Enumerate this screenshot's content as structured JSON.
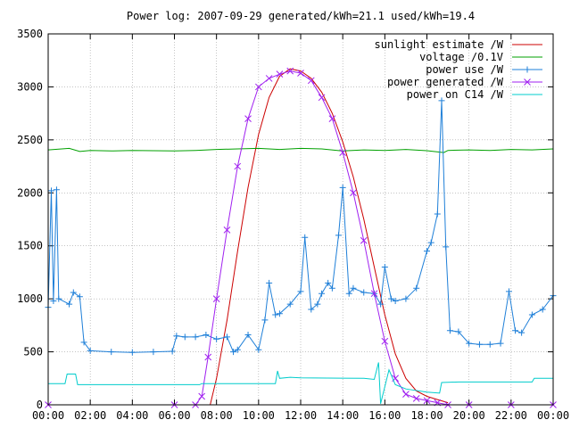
{
  "chart_data": {
    "type": "line",
    "title": "Power log: 2007-09-29 generated/kWh=21.1 used/kWh=19.4",
    "xlabel": "",
    "ylabel": "",
    "xlim": [
      0,
      24
    ],
    "ylim": [
      0,
      3500
    ],
    "grid": true,
    "legend_position": "top-right",
    "x_tick_labels": [
      "00:00",
      "02:00",
      "04:00",
      "06:00",
      "08:00",
      "10:00",
      "12:00",
      "14:00",
      "16:00",
      "18:00",
      "20:00",
      "22:00",
      "00:00"
    ],
    "y_tick_labels": [
      "0",
      "500",
      "1000",
      "1500",
      "2000",
      "2500",
      "3000",
      "3500"
    ],
    "series": [
      {
        "name": "sunlight estimate /W",
        "color": "#cc0000",
        "marker": "none",
        "x": [
          7.7,
          8.0,
          8.5,
          9.0,
          9.5,
          10.0,
          10.5,
          11.0,
          11.5,
          12.0,
          12.5,
          13.0,
          13.5,
          14.0,
          14.5,
          15.0,
          15.5,
          16.0,
          16.5,
          17.0,
          17.5,
          18.0,
          18.5,
          19.0
        ],
        "y": [
          0,
          250,
          800,
          1450,
          2050,
          2550,
          2900,
          3100,
          3170,
          3150,
          3080,
          2950,
          2750,
          2480,
          2150,
          1750,
          1300,
          850,
          480,
          250,
          130,
          80,
          50,
          20
        ]
      },
      {
        "name": "voltage /0.1V",
        "color": "#00a000",
        "marker": "none",
        "x": [
          0,
          1,
          1.5,
          2,
          3,
          4,
          5,
          6,
          7,
          8,
          9,
          10,
          11,
          12,
          13,
          14,
          15,
          16,
          17,
          18,
          18.8,
          19,
          20,
          21,
          22,
          23,
          24
        ],
        "y": [
          2405,
          2420,
          2390,
          2400,
          2395,
          2400,
          2398,
          2395,
          2400,
          2410,
          2415,
          2420,
          2410,
          2420,
          2415,
          2395,
          2405,
          2400,
          2410,
          2398,
          2380,
          2400,
          2405,
          2400,
          2410,
          2405,
          2415
        ]
      },
      {
        "name": "power use /W",
        "color": "#1e7fd8",
        "marker": "plus",
        "x": [
          0,
          0.15,
          0.25,
          0.4,
          0.5,
          1.0,
          1.2,
          1.5,
          1.7,
          2.0,
          3.0,
          4.0,
          5.0,
          5.9,
          6.1,
          6.5,
          7.0,
          7.5,
          8.0,
          8.5,
          8.8,
          9.0,
          9.5,
          10.0,
          10.3,
          10.5,
          10.8,
          11.0,
          11.5,
          12.0,
          12.2,
          12.5,
          12.8,
          13.0,
          13.3,
          13.5,
          13.8,
          14.0,
          14.3,
          14.5,
          15.0,
          15.5,
          15.8,
          16.0,
          16.3,
          16.5,
          17.0,
          17.5,
          18.0,
          18.2,
          18.5,
          18.7,
          18.9,
          19.1,
          19.5,
          20.0,
          20.5,
          21.0,
          21.5,
          21.9,
          22.2,
          22.5,
          23.0,
          23.5,
          24.0
        ],
        "y": [
          920,
          2020,
          980,
          2030,
          1000,
          950,
          1060,
          1020,
          590,
          510,
          500,
          495,
          500,
          505,
          650,
          640,
          640,
          660,
          620,
          640,
          500,
          520,
          660,
          520,
          800,
          1150,
          850,
          860,
          950,
          1070,
          1580,
          900,
          950,
          1050,
          1150,
          1100,
          1600,
          2050,
          1050,
          1100,
          1060,
          1050,
          950,
          1300,
          1000,
          980,
          1000,
          1100,
          1450,
          1530,
          1800,
          2870,
          1490,
          700,
          690,
          580,
          570,
          570,
          580,
          1070,
          700,
          680,
          850,
          900,
          1030
        ]
      },
      {
        "name": "power generated /W",
        "color": "#a020f0",
        "marker": "cross",
        "x": [
          0,
          6,
          7,
          7.3,
          7.6,
          8.0,
          8.5,
          9.0,
          9.5,
          10.0,
          10.5,
          11.0,
          11.5,
          12.0,
          12.5,
          13.0,
          13.5,
          14.0,
          14.5,
          15.0,
          15.5,
          16.0,
          16.5,
          17.0,
          17.5,
          18.0,
          18.5,
          19.0,
          20.0,
          22.0,
          24.0
        ],
        "y": [
          0,
          0,
          0,
          80,
          450,
          1000,
          1650,
          2250,
          2700,
          3000,
          3080,
          3120,
          3150,
          3130,
          3060,
          2900,
          2700,
          2380,
          2000,
          1550,
          1050,
          600,
          250,
          100,
          60,
          40,
          20,
          0,
          0,
          0,
          0
        ]
      },
      {
        "name": "power on C14 /W",
        "color": "#00cccc",
        "marker": "none",
        "x": [
          0,
          0.8,
          0.9,
          1.3,
          1.4,
          7.2,
          7.3,
          10.8,
          10.9,
          11.0,
          11.5,
          12.0,
          15.0,
          15.5,
          15.7,
          15.8,
          16.2,
          16.5,
          17.0,
          18.0,
          18.6,
          18.7,
          19.5,
          20.0,
          22.0,
          23.0,
          23.1,
          24.0
        ],
        "y": [
          200,
          200,
          290,
          290,
          190,
          190,
          200,
          200,
          320,
          250,
          260,
          255,
          250,
          240,
          400,
          10,
          330,
          190,
          150,
          120,
          110,
          210,
          215,
          215,
          215,
          215,
          250,
          250
        ]
      }
    ]
  }
}
